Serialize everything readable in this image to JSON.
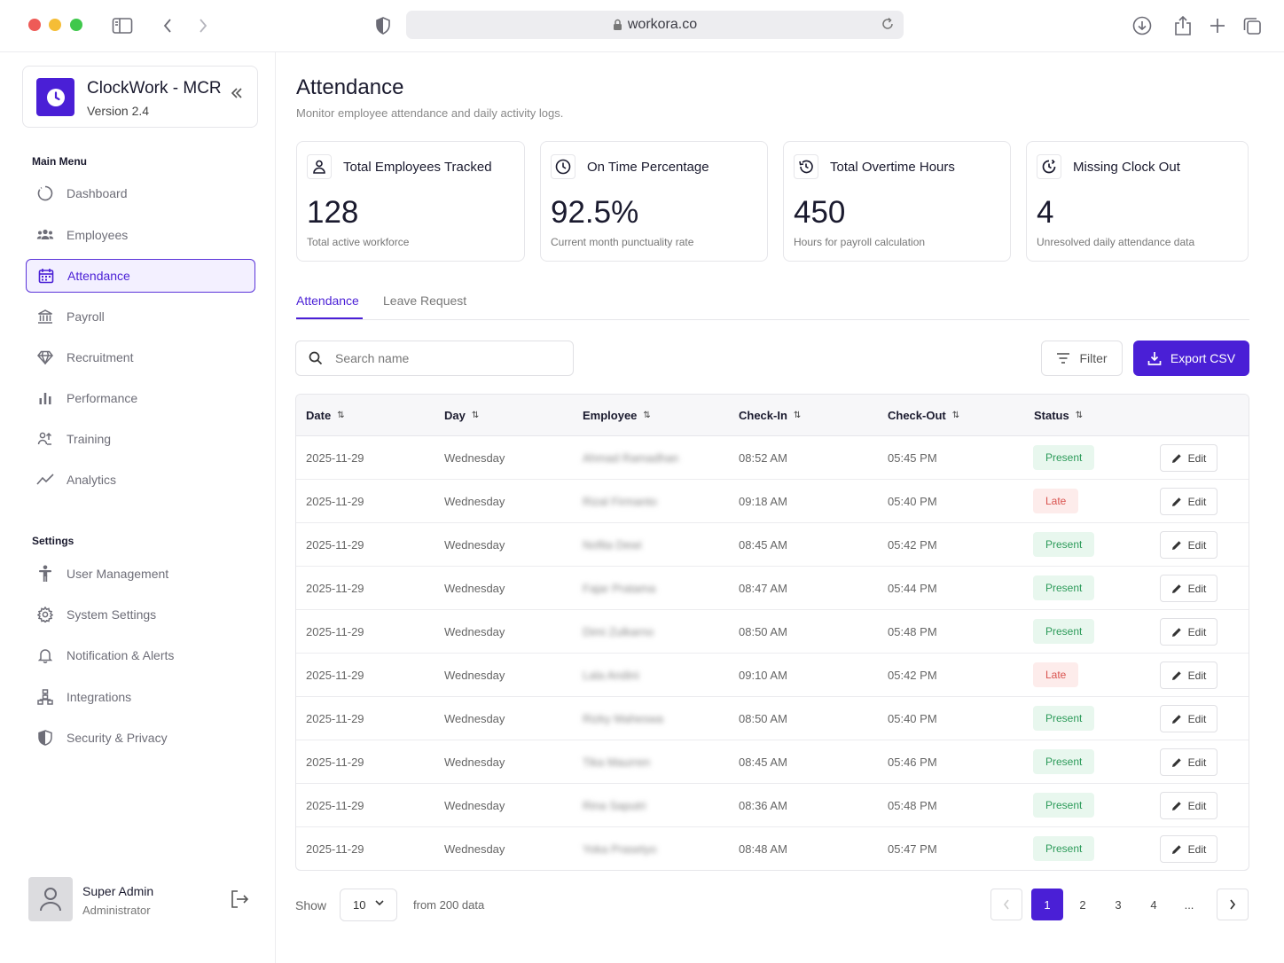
{
  "browser": {
    "url": "workora.co"
  },
  "brand": {
    "name": "ClockWork - MCR",
    "version": "Version 2.4"
  },
  "sidebar": {
    "main_menu_label": "Main Menu",
    "main_items": [
      {
        "label": "Dashboard",
        "icon": "dashboard-icon"
      },
      {
        "label": "Employees",
        "icon": "users-icon"
      },
      {
        "label": "Attendance",
        "icon": "calendar-icon",
        "active": true
      },
      {
        "label": "Payroll",
        "icon": "bank-icon"
      },
      {
        "label": "Recruitment",
        "icon": "diamond-icon"
      },
      {
        "label": "Performance",
        "icon": "bar-chart-icon"
      },
      {
        "label": "Training",
        "icon": "training-icon"
      },
      {
        "label": "Analytics",
        "icon": "trend-icon"
      }
    ],
    "settings_label": "Settings",
    "settings_items": [
      {
        "label": "User Management",
        "icon": "person-icon"
      },
      {
        "label": "System Settings",
        "icon": "gear-icon"
      },
      {
        "label": "Notification & Alerts",
        "icon": "bell-icon"
      },
      {
        "label": "Integrations",
        "icon": "hierarchy-icon"
      },
      {
        "label": "Security & Privacy",
        "icon": "shield-icon"
      }
    ],
    "user": {
      "name": "Super Admin",
      "role": "Administrator"
    }
  },
  "page": {
    "title": "Attendance",
    "subtitle": "Monitor employee attendance and daily activity logs."
  },
  "stats": [
    {
      "title": "Total Employees Tracked",
      "value": "128",
      "caption": "Total active workforce",
      "icon": "user-icon"
    },
    {
      "title": "On Time Percentage",
      "value": "92.5%",
      "caption": "Current month punctuality rate",
      "icon": "clock-icon"
    },
    {
      "title": "Total Overtime Hours",
      "value": "450",
      "caption": "Hours for payroll calculation",
      "icon": "history-icon"
    },
    {
      "title": "Missing Clock Out",
      "value": "4",
      "caption": "Unresolved daily attendance data",
      "icon": "clock-alert-icon"
    }
  ],
  "tabs": [
    {
      "label": "Attendance",
      "active": true
    },
    {
      "label": "Leave Request"
    }
  ],
  "toolbar": {
    "search_placeholder": "Search name",
    "filter_label": "Filter",
    "export_label": "Export CSV"
  },
  "table": {
    "columns": [
      "Date",
      "Day",
      "Employee",
      "Check-In",
      "Check-Out",
      "Status"
    ],
    "edit_label": "Edit",
    "rows": [
      {
        "date": "2025-11-29",
        "day": "Wednesday",
        "employee": "Ahmad Ramadhan",
        "check_in": "08:52 AM",
        "check_out": "05:45 PM",
        "status": "Present"
      },
      {
        "date": "2025-11-29",
        "day": "Wednesday",
        "employee": "Rizal Firmanto",
        "check_in": "09:18 AM",
        "check_out": "05:40 PM",
        "status": "Late"
      },
      {
        "date": "2025-11-29",
        "day": "Wednesday",
        "employee": "Nofita Dewi",
        "check_in": "08:45 AM",
        "check_out": "05:42 PM",
        "status": "Present"
      },
      {
        "date": "2025-11-29",
        "day": "Wednesday",
        "employee": "Fajar Pratama",
        "check_in": "08:47 AM",
        "check_out": "05:44 PM",
        "status": "Present"
      },
      {
        "date": "2025-11-29",
        "day": "Wednesday",
        "employee": "Dimi Zulkarno",
        "check_in": "08:50 AM",
        "check_out": "05:48 PM",
        "status": "Present"
      },
      {
        "date": "2025-11-29",
        "day": "Wednesday",
        "employee": "Lala Andini",
        "check_in": "09:10 AM",
        "check_out": "05:42 PM",
        "status": "Late"
      },
      {
        "date": "2025-11-29",
        "day": "Wednesday",
        "employee": "Rizky Maheswa",
        "check_in": "08:50 AM",
        "check_out": "05:40 PM",
        "status": "Present"
      },
      {
        "date": "2025-11-29",
        "day": "Wednesday",
        "employee": "Tika Maurren",
        "check_in": "08:45 AM",
        "check_out": "05:46 PM",
        "status": "Present"
      },
      {
        "date": "2025-11-29",
        "day": "Wednesday",
        "employee": "Rina Saputri",
        "check_in": "08:36 AM",
        "check_out": "05:48 PM",
        "status": "Present"
      },
      {
        "date": "2025-11-29",
        "day": "Wednesday",
        "employee": "Yoka Prasetyo",
        "check_in": "08:48 AM",
        "check_out": "05:47 PM",
        "status": "Present"
      }
    ]
  },
  "pagination": {
    "show_label": "Show",
    "page_size": "10",
    "from_label": "from 200 data",
    "pages": [
      "1",
      "2",
      "3",
      "4",
      "..."
    ],
    "current": "1"
  },
  "colors": {
    "accent": "#4a1fd6",
    "present_bg": "#e8f7ee",
    "present_text": "#2d9b5a",
    "late_bg": "#fdeceb",
    "late_text": "#d9534f"
  }
}
